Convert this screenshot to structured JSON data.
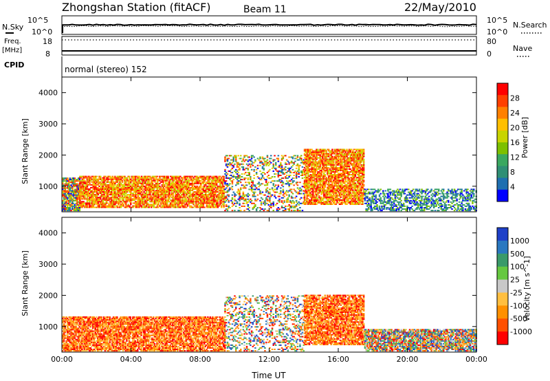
{
  "header": {
    "station": "Zhongshan Station (fitACF)",
    "beam": "Beam 11",
    "date": "22/May/2010"
  },
  "status_panels": {
    "nsky_label": "N.Sky",
    "nsearch_label": "N.Search",
    "freq_label": "Freq.",
    "freq_unit": "[MHz]",
    "nave_label": "Nave",
    "cpid_label": "CPID",
    "cpid_value": "normal (stereo) 152",
    "noise_ticks": [
      "10^5",
      "10^0"
    ],
    "freq_ticks": [
      "18",
      "8"
    ],
    "nave_ticks": [
      "80",
      "0"
    ]
  },
  "chart_data": [
    {
      "type": "heatmap",
      "name": "power",
      "ylabel": "Slant Range [km]",
      "xlabel": "Time UT",
      "ylim": [
        180,
        4500
      ],
      "y_ticks": [
        "1000",
        "2000",
        "3000",
        "4000"
      ],
      "x_ticks": [
        "00:00",
        "04:00",
        "08:00",
        "12:00",
        "16:00",
        "20:00",
        "00:00"
      ],
      "x_tick_hours": [
        0,
        4,
        8,
        12,
        16,
        20,
        24
      ],
      "colorbar": {
        "label": "Power [dB]",
        "ticks": [
          "28",
          "24",
          "20",
          "16",
          "12",
          "8",
          "4"
        ],
        "colors": [
          "#ff0000",
          "#ff4000",
          "#ff8000",
          "#ffbf00",
          "#c8d400",
          "#7dc000",
          "#3aa860",
          "#2f8f75",
          "#1f6fb0",
          "#0000ff"
        ]
      },
      "echo_regions": [
        {
          "t": [
            0.0,
            1.0
          ],
          "r": [
            200,
            1250
          ],
          "level": "mixed"
        },
        {
          "t": [
            1.0,
            9.4
          ],
          "r": [
            300,
            1300
          ],
          "level": "high"
        },
        {
          "t": [
            9.4,
            14.0
          ],
          "r": [
            200,
            2000
          ],
          "level": "sparse"
        },
        {
          "t": [
            14.0,
            17.5
          ],
          "r": [
            400,
            2200
          ],
          "level": "high"
        },
        {
          "t": [
            17.5,
            24.0
          ],
          "r": [
            200,
            900
          ],
          "level": "low"
        }
      ]
    },
    {
      "type": "heatmap",
      "name": "velocity",
      "ylabel": "Slant Range [km]",
      "xlabel": "Time UT",
      "ylim": [
        180,
        4500
      ],
      "y_ticks": [
        "1000",
        "2000",
        "3000",
        "4000"
      ],
      "x_ticks": [
        "00:00",
        "04:00",
        "08:00",
        "12:00",
        "16:00",
        "20:00",
        "00:00"
      ],
      "x_tick_hours": [
        0,
        4,
        8,
        12,
        16,
        20,
        24
      ],
      "colorbar": {
        "label": "Velocity [m s^-1]",
        "ticks": [
          "1000",
          "500",
          "100",
          "25",
          "-25",
          "-100",
          "-500",
          "-1000"
        ],
        "colors": [
          "#1e40c8",
          "#2a78c0",
          "#3a9a6a",
          "#66c840",
          "#c8c8c8",
          "#ffbf40",
          "#ff9000",
          "#ff5000",
          "#ff0000"
        ]
      },
      "echo_regions": [
        {
          "t": [
            0.0,
            9.4
          ],
          "r": [
            200,
            1300
          ],
          "level": "negative"
        },
        {
          "t": [
            9.4,
            14.0
          ],
          "r": [
            200,
            2000
          ],
          "level": "sparse"
        },
        {
          "t": [
            14.0,
            17.5
          ],
          "r": [
            400,
            2000
          ],
          "level": "negative"
        },
        {
          "t": [
            17.5,
            24.0
          ],
          "r": [
            200,
            900
          ],
          "level": "mixed"
        }
      ]
    }
  ]
}
